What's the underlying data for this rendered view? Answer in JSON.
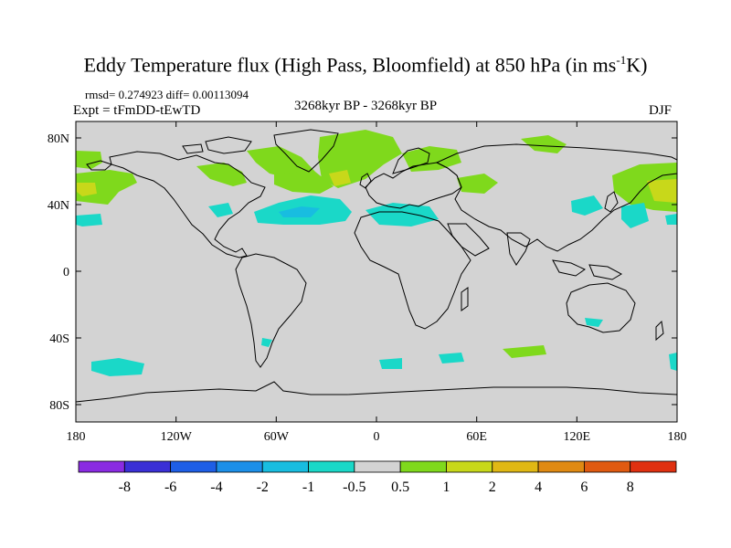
{
  "title": {
    "main": "Eddy Temperature flux (High Pass, Bloomfield) at 850 hPa (in ms",
    "sup": "-1",
    "suffix": "K)"
  },
  "stats": "rmsd= 0.274923 diff= 0.00113094",
  "expt": "Expt = tFmDD-tEwTD",
  "period": "3268kyr BP - 3268kyr BP",
  "season": "DJF",
  "axes": {
    "lat_labels": [
      "80N",
      "40N",
      "0",
      "40S",
      "80S"
    ],
    "lon_labels": [
      "180",
      "120W",
      "60W",
      "0",
      "60E",
      "120E",
      "180"
    ]
  },
  "colorbar": {
    "colors": [
      "#8a2be2",
      "#3a2fd6",
      "#1e5ee6",
      "#1c8fe8",
      "#18bde0",
      "#1ad8c8",
      "#d3d3d3",
      "#7fd91c",
      "#c8d81a",
      "#e0b814",
      "#e08a12",
      "#e05a10",
      "#e03010"
    ],
    "labels": [
      "-8",
      "-6",
      "-4",
      "-2",
      "-1",
      "-0.5",
      "0.5",
      "1",
      "2",
      "4",
      "6",
      "8"
    ]
  },
  "colors": {
    "ocean": "#d3d3d3",
    "pos": "#7fd91c",
    "pos2": "#c8d81a",
    "neg": "#1ad8c8"
  }
}
